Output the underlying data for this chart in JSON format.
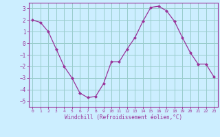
{
  "x": [
    0,
    1,
    2,
    3,
    4,
    5,
    6,
    7,
    8,
    9,
    10,
    11,
    12,
    13,
    14,
    15,
    16,
    17,
    18,
    19,
    20,
    21,
    22,
    23
  ],
  "y": [
    2.0,
    1.8,
    1.0,
    -0.5,
    -2.0,
    -3.0,
    -4.3,
    -4.7,
    -4.6,
    -3.5,
    -1.6,
    -1.6,
    -0.5,
    0.5,
    1.9,
    3.1,
    3.2,
    2.8,
    1.9,
    0.5,
    -0.8,
    -1.8,
    -1.8,
    -2.9
  ],
  "line_color": "#993399",
  "marker": "D",
  "marker_size": 2.0,
  "bg_color": "#cceeff",
  "grid_color": "#99cccc",
  "xlabel": "Windchill (Refroidissement éolien,°C)",
  "xlabel_color": "#993399",
  "tick_color": "#993399",
  "ylim": [
    -5.5,
    3.5
  ],
  "xlim": [
    -0.5,
    23.5
  ],
  "yticks": [
    -5,
    -4,
    -3,
    -2,
    -1,
    0,
    1,
    2,
    3
  ],
  "xticks": [
    0,
    1,
    2,
    3,
    4,
    5,
    6,
    7,
    8,
    9,
    10,
    11,
    12,
    13,
    14,
    15,
    16,
    17,
    18,
    19,
    20,
    21,
    22,
    23
  ],
  "spine_color": "#993399"
}
